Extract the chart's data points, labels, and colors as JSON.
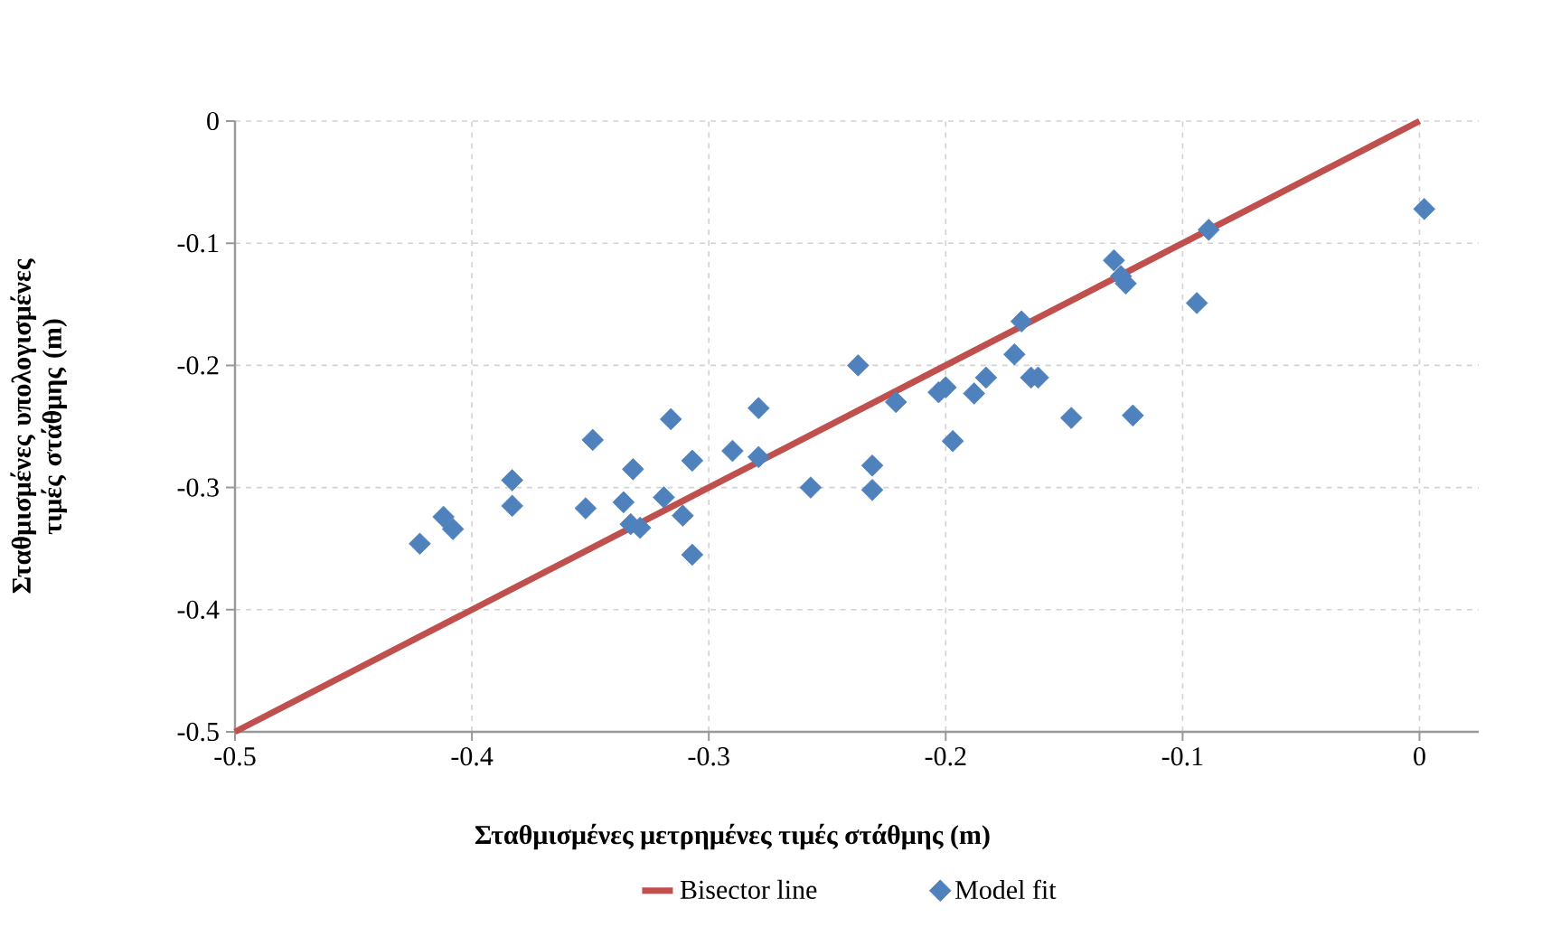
{
  "chart_data": {
    "type": "scatter",
    "xlabel": "Σταθμισμένες μετρημένες τιμές στάθμης (m)",
    "ylabel": "Σταθμισμένες υπολογισμένες τιμές στάθμης (m)",
    "xlim": [
      -0.5,
      0.025
    ],
    "ylim": [
      -0.5,
      0
    ],
    "xticks": [
      -0.5,
      -0.4,
      -0.3,
      -0.2,
      -0.1,
      0
    ],
    "yticks": [
      -0.5,
      -0.4,
      -0.3,
      -0.2,
      -0.1,
      0
    ],
    "grid": true,
    "legend": "bottom",
    "series": [
      {
        "name": "Bisector line",
        "type": "line",
        "color": "#c0504d",
        "marker": "none",
        "x": [
          -0.5,
          0
        ],
        "values": [
          -0.5,
          0
        ]
      },
      {
        "name": "Model fit",
        "color": "#4f81bd",
        "marker": "diamond",
        "x": [
          -0.422,
          -0.412,
          -0.408,
          -0.383,
          -0.383,
          -0.352,
          -0.349,
          -0.336,
          -0.332,
          -0.333,
          -0.329,
          -0.319,
          -0.316,
          -0.311,
          -0.307,
          -0.307,
          -0.29,
          -0.279,
          -0.279,
          -0.257,
          -0.237,
          -0.231,
          -0.231,
          -0.221,
          -0.203,
          -0.2,
          -0.197,
          -0.188,
          -0.183,
          -0.171,
          -0.168,
          -0.164,
          -0.161,
          -0.147,
          -0.121,
          -0.129,
          -0.126,
          -0.124,
          -0.094,
          -0.089,
          0.002
        ],
        "values": [
          -0.346,
          -0.324,
          -0.334,
          -0.294,
          -0.315,
          -0.317,
          -0.261,
          -0.312,
          -0.285,
          -0.33,
          -0.333,
          -0.308,
          -0.244,
          -0.323,
          -0.278,
          -0.355,
          -0.27,
          -0.275,
          -0.235,
          -0.3,
          -0.2,
          -0.282,
          -0.302,
          -0.23,
          -0.222,
          -0.218,
          -0.262,
          -0.223,
          -0.21,
          -0.191,
          -0.164,
          -0.21,
          -0.21,
          -0.243,
          -0.241,
          -0.114,
          -0.127,
          -0.133,
          -0.149,
          -0.089,
          -0.072
        ]
      }
    ]
  }
}
